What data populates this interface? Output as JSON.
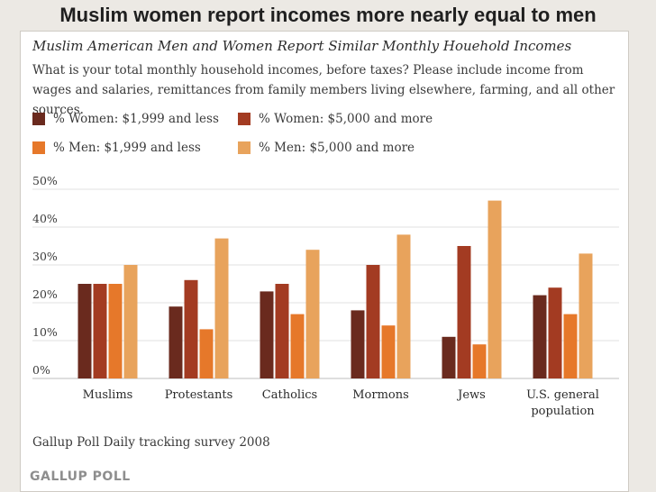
{
  "slide_title": "Muslim women report incomes more nearly equal to men",
  "chart_data": {
    "type": "bar",
    "title": "Muslim American Men and Women Report Similar Monthly Houehold Incomes",
    "question": "What is your total monthly household incomes, before taxes? Please include income from wages and salaries, remittances from family members living elsewhere, farming, and all other sources.",
    "categories": [
      "Muslims",
      "Protestants",
      "Catholics",
      "Mormons",
      "Jews",
      "U.S. general|population"
    ],
    "series": [
      {
        "name": "% Women: $1,999 and less",
        "color": "#6a2a1e",
        "values": [
          25,
          19,
          23,
          18,
          11,
          22
        ]
      },
      {
        "name": "% Women: $5,000 and more",
        "color": "#a33b22",
        "values": [
          25,
          26,
          25,
          30,
          35,
          24
        ]
      },
      {
        "name": "% Men: $1,999 and less",
        "color": "#e6782a",
        "values": [
          25,
          13,
          17,
          14,
          9,
          17
        ]
      },
      {
        "name": "% Men: $5,000 and more",
        "color": "#e8a35c",
        "values": [
          30,
          37,
          34,
          38,
          47,
          33
        ]
      }
    ],
    "yticks": [
      "0%",
      "10%",
      "20%",
      "30%",
      "40%",
      "50%"
    ],
    "ylim": [
      0,
      50
    ],
    "xlabel": "",
    "ylabel": "",
    "grid": true,
    "source": "Gallup Poll Daily tracking survey 2008"
  },
  "logo": "GALLUP POLL"
}
